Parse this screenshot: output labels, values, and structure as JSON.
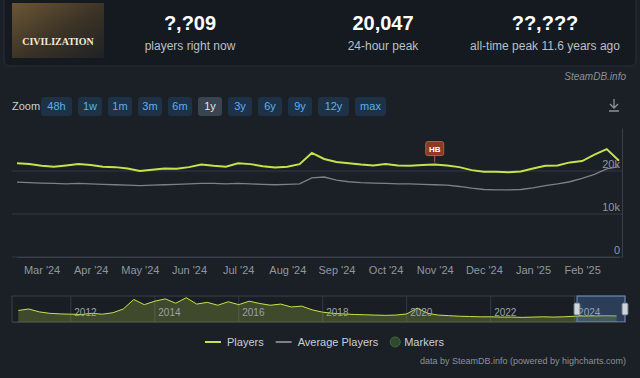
{
  "header": {
    "thumbnail_text": "CIVILIZATION",
    "stats": [
      {
        "value": "?,?09",
        "label": "players right now"
      },
      {
        "value": "20,047",
        "label": "24-hour peak"
      },
      {
        "value": "??,???",
        "label": "all-time peak 11.6 years ago"
      }
    ]
  },
  "watermark": "SteamDB.info",
  "zoom": {
    "label": "Zoom",
    "buttons": [
      "48h",
      "1w",
      "1m",
      "3m",
      "6m",
      "1y",
      "3y",
      "6y",
      "9y",
      "12y",
      "max"
    ],
    "selected": "1y"
  },
  "chart_data": [
    {
      "type": "line",
      "categories": [
        null,
        null,
        "Mar '24",
        null,
        null,
        null,
        "Apr '24",
        null,
        null,
        null,
        "May '24",
        null,
        null,
        null,
        "Jun '24",
        null,
        null,
        null,
        "Jul '24",
        null,
        null,
        null,
        "Aug '24",
        null,
        null,
        null,
        "Sep '24",
        null,
        null,
        null,
        "Oct '24",
        null,
        null,
        null,
        "Nov '24",
        null,
        null,
        null,
        "Dec '24",
        null,
        null,
        null,
        "Jan '25",
        null,
        null,
        null,
        "Feb '25",
        null,
        null,
        null
      ],
      "series": [
        {
          "name": "Players",
          "color": "#c5e34b",
          "line_style": "solid",
          "values": [
            21800,
            21600,
            21200,
            21000,
            21300,
            21600,
            21400,
            21000,
            20900,
            20600,
            20000,
            20300,
            20600,
            20500,
            20900,
            21500,
            21200,
            21000,
            21800,
            21600,
            21100,
            20800,
            21000,
            21600,
            24200,
            22800,
            22100,
            21800,
            21500,
            21300,
            21600,
            21300,
            21200,
            21400,
            21500,
            21300,
            20900,
            20200,
            19800,
            19800,
            19700,
            19900,
            20600,
            21200,
            21300,
            22000,
            22300,
            23800,
            25100,
            22400
          ]
        },
        {
          "name": "Average Players",
          "color": "#7c8189",
          "line_style": "solid",
          "values": [
            17400,
            17300,
            17200,
            17100,
            17000,
            17100,
            17000,
            16900,
            16800,
            16700,
            16600,
            16700,
            16800,
            16900,
            17000,
            17100,
            17100,
            17000,
            17100,
            17000,
            16900,
            16800,
            16900,
            17000,
            18400,
            18600,
            17900,
            17500,
            17300,
            17200,
            17100,
            17000,
            17000,
            16900,
            16800,
            16700,
            16400,
            16000,
            15700,
            15600,
            15600,
            15700,
            16100,
            16600,
            17000,
            17500,
            18300,
            19200,
            20500,
            21000
          ]
        }
      ],
      "markers": {
        "name": "Markers",
        "items": [
          {
            "text": "HB",
            "at": 34
          }
        ]
      },
      "ylim": [
        0,
        30000
      ],
      "yticks": [
        0,
        {
          "value": 10000,
          "label": "10k"
        },
        {
          "value": 20000,
          "label": "20k"
        }
      ],
      "grid": true,
      "legend": "bottom"
    },
    {
      "type": "area",
      "x": [
        2010.75,
        2011.0,
        2011.25,
        2011.5,
        2011.75,
        2012.0,
        2012.25,
        2012.5,
        2012.75,
        2013.0,
        2013.25,
        2013.5,
        2013.75,
        2014.0,
        2014.25,
        2014.5,
        2014.75,
        2015.0,
        2015.25,
        2015.5,
        2015.75,
        2016.0,
        2016.25,
        2016.5,
        2016.75,
        2017.0,
        2017.25,
        2017.5,
        2017.75,
        2018.0,
        2018.25,
        2018.5,
        2018.75,
        2019.0,
        2019.25,
        2019.5,
        2019.75,
        2020.0,
        2020.25,
        2020.5,
        2020.75,
        2021.0,
        2021.25,
        2021.5,
        2021.75,
        2022.0,
        2022.25,
        2022.5,
        2022.75,
        2023.0,
        2023.25,
        2023.5,
        2023.75,
        2024.0,
        2024.25,
        2024.5,
        2024.75,
        2025.0
      ],
      "values": [
        40000,
        45000,
        35000,
        30000,
        28000,
        27000,
        26000,
        30000,
        27000,
        32000,
        45000,
        78000,
        60000,
        72000,
        80000,
        65000,
        84000,
        62000,
        68000,
        58000,
        70000,
        60000,
        72000,
        64000,
        58000,
        62000,
        52000,
        55000,
        42000,
        34000,
        30000,
        28000,
        26000,
        25000,
        24000,
        23000,
        24000,
        28000,
        48000,
        30000,
        24000,
        22000,
        20000,
        19000,
        18000,
        18000,
        17000,
        17000,
        16000,
        17000,
        18000,
        17000,
        18000,
        20000,
        20500,
        21000,
        21500,
        21000
      ],
      "color": "#c5e34b",
      "xlim": [
        2010.6,
        2025.2
      ],
      "xticks": [
        2012,
        2014,
        2016,
        2018,
        2020,
        2022,
        2024
      ],
      "ylim": [
        0,
        90000
      ],
      "grid": true,
      "tick_labels": "x"
    }
  ],
  "credit": "data by SteamDB.info (powered by highcharts.com)"
}
